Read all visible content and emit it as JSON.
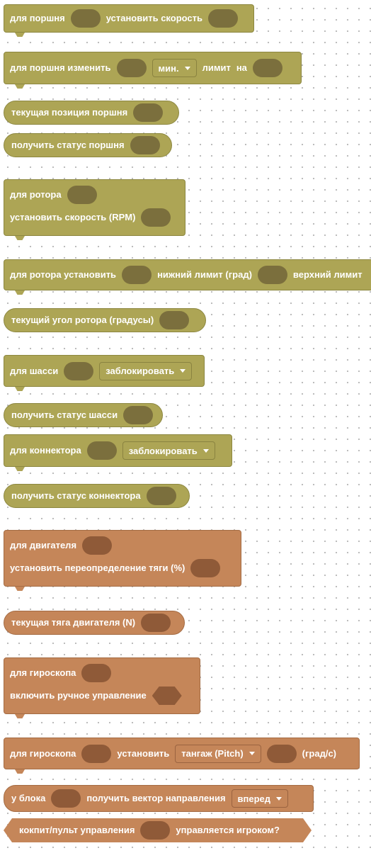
{
  "palette": {
    "piston_color": "#ada555",
    "engine_color": "#c58659",
    "background": "#ffffff",
    "grid_dots": "#b9b9b9"
  },
  "blocks": {
    "piston_speed": {
      "label_1": "для поршня",
      "label_2": "установить скорость"
    },
    "piston_limit": {
      "label_1": "для поршня изменить",
      "dropdown": "мин.",
      "label_2": "лимит",
      "label_3": "на"
    },
    "piston_position": {
      "label": "текущая позиция поршня"
    },
    "piston_status": {
      "label": "получить статус поршня"
    },
    "rotor_rpm": {
      "label_1": "для ротора",
      "label_2": "установить скорость (RPM)"
    },
    "rotor_limits": {
      "label_1": "для ротора установить",
      "label_2": "нижний лимит (град)",
      "label_3": "верхний лимит"
    },
    "rotor_angle": {
      "label": "текущий угол ротора (градусы)"
    },
    "chassis_lock": {
      "label": "для шасси",
      "dropdown": "заблокировать"
    },
    "chassis_status": {
      "label": "получить статус шасси"
    },
    "connector_lock": {
      "label": "для коннектора",
      "dropdown": "заблокировать"
    },
    "connector_status": {
      "label": "получить статус коннектора"
    },
    "thruster_override": {
      "label_1": "для двигателя",
      "label_2": "установить переопределение тяги (%)"
    },
    "thruster_current": {
      "label": "текущая тяга двигателя (N)"
    },
    "gyro_manual": {
      "label_1": "для гироскопа",
      "label_2": "включить ручное управление"
    },
    "gyro_set": {
      "label_1": "для гироскопа",
      "label_2": "установить",
      "dropdown": "тангаж (Pitch)",
      "label_3": "(град/с)"
    },
    "block_vector": {
      "label_1": "у блока",
      "label_2": "получить вектор направления",
      "dropdown": "вперед"
    },
    "cockpit_control": {
      "label_1": "кокпит/пульт управления",
      "label_2": "управляется игроком?"
    }
  }
}
